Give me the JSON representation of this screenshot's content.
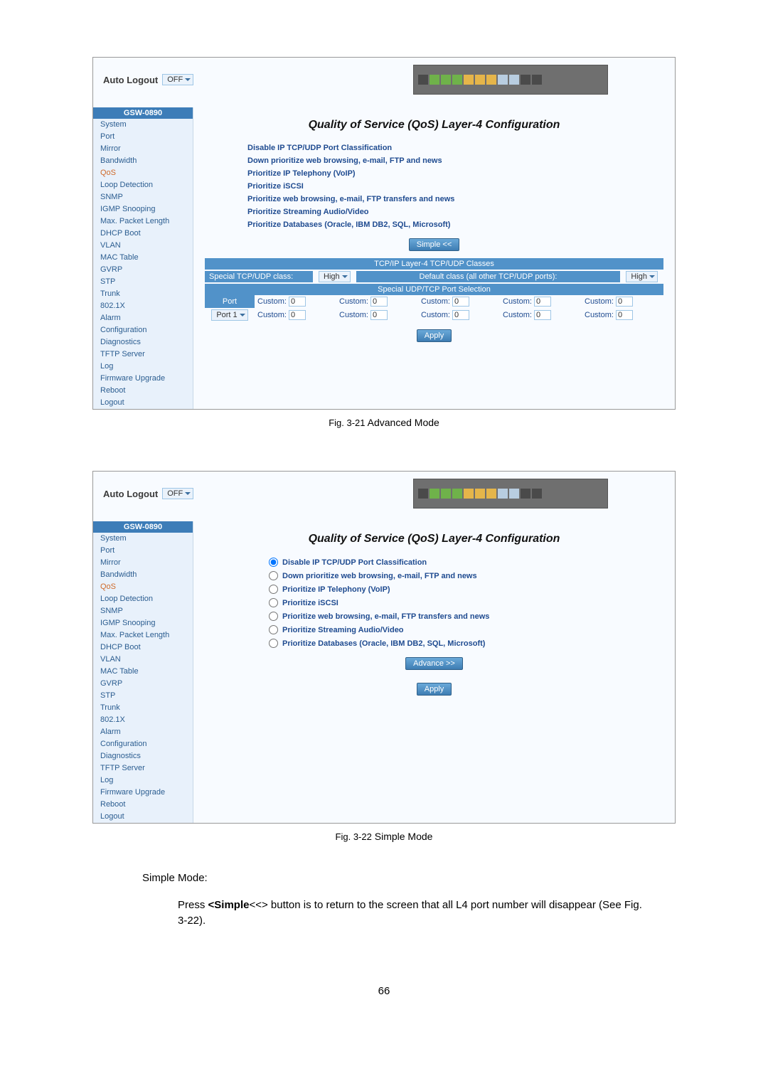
{
  "auto_logout_label": "Auto Logout",
  "auto_logout_value": "OFF",
  "model": "GSW-0890",
  "nav_items": [
    "System",
    "Port",
    "Mirror",
    "Bandwidth",
    "QoS",
    "Loop Detection",
    "SNMP",
    "IGMP Snooping",
    "Max. Packet Length",
    "DHCP Boot",
    "VLAN",
    "MAC Table",
    "GVRP",
    "STP",
    "Trunk",
    "802.1X",
    "Alarm",
    "Configuration",
    "Diagnostics",
    "TFTP Server",
    "Log",
    "Firmware Upgrade",
    "Reboot",
    "Logout"
  ],
  "active_nav_index": 4,
  "title": "Quality of Service (QoS) Layer-4 Configuration",
  "options": [
    "Disable IP TCP/UDP Port Classification",
    "Down prioritize web browsing, e-mail, FTP and news",
    "Prioritize IP Telephony (VoIP)",
    "Prioritize iSCSI",
    "Prioritize web browsing, e-mail, FTP transfers and news",
    "Prioritize Streaming Audio/Video",
    "Prioritize Databases (Oracle, IBM DB2, SQL, Microsoft)"
  ],
  "btn_simple": "Simple <<",
  "btn_advance": "Advance >>",
  "btn_apply": "Apply",
  "classes_header": "TCP/IP Layer-4 TCP/UDP Classes",
  "special_class_label": "Special TCP/UDP class:",
  "special_class_value": "High",
  "default_class_label": "Default class (all other TCP/UDP ports):",
  "default_class_value": "High",
  "port_sel_header": "Special UDP/TCP Port Selection",
  "port_head": "Port",
  "port_value": "Port 1",
  "custom_label": "Custom:",
  "custom_value": "0",
  "fig1_label": "Fig. 3-21",
  "fig1_text": "Advanced Mode",
  "fig2_label": "Fig. 3-22",
  "fig2_text": "Simple Mode",
  "body_h": "Simple Mode:",
  "body_p_prefix": "Press ",
  "body_p_bold": "<Simple",
  "body_p_mid": "<<>",
  "body_p_suffix": " button is to return to the screen that all L4 port number will disappear (See Fig. 3-22).",
  "page_number": "66"
}
